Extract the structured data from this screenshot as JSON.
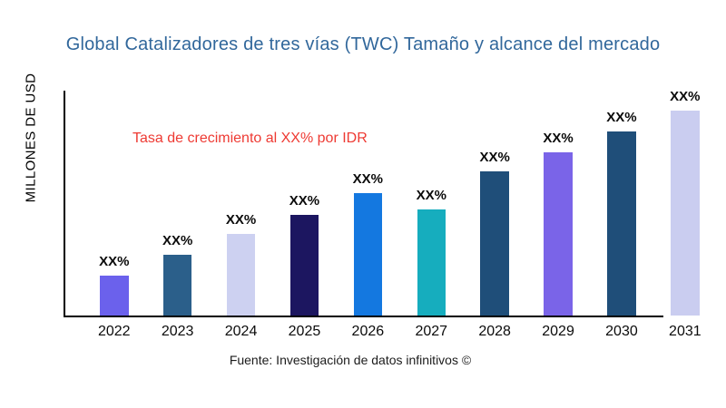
{
  "figure": {
    "title": "Global Catalizadores de tres vías (TWC) Tamaño y alcance del mercado",
    "y_axis_label": "MILLONES DE USD",
    "annotation": "Tasa de crecimiento al XX% por IDR",
    "source_note": "Fuente: Investigación de datos infinitivos ©"
  },
  "colors": {
    "title": "#31679B",
    "annotation": "#EE3A33",
    "axis": "#000000",
    "background": "#FFFFFF"
  },
  "chart_data": {
    "type": "bar",
    "title": "Global Catalizadores de tres vías (TWC) Tamaño y alcance del mercado",
    "xlabel": "",
    "ylabel": "MILLONES DE USD",
    "categories": [
      "2022",
      "2023",
      "2024",
      "2025",
      "2026",
      "2027",
      "2028",
      "2029",
      "2030",
      "2031"
    ],
    "values": [
      44,
      67,
      90,
      111,
      135,
      117,
      159,
      180,
      203,
      226
    ],
    "value_note": "all data labels are masked as XX% in the chart; values are relative bar heights in pixels",
    "data_labels": [
      "XX%",
      "XX%",
      "XX%",
      "XX%",
      "XX%",
      "XX%",
      "XX%",
      "XX%",
      "XX%",
      "XX%"
    ],
    "bar_colors": [
      "#6B61EC",
      "#2B5F8A",
      "#CDD1F1",
      "#1C1660",
      "#1478E0",
      "#16ADBE",
      "#1F4E79",
      "#7A64E8",
      "#1F4E79",
      "#CACDF0"
    ],
    "annotation": "Tasa de crecimiento al XX% por IDR",
    "source": "Fuente: Investigación de datos infinitivos ©",
    "gridlines": false,
    "y_ticks": [],
    "legend": "none"
  }
}
